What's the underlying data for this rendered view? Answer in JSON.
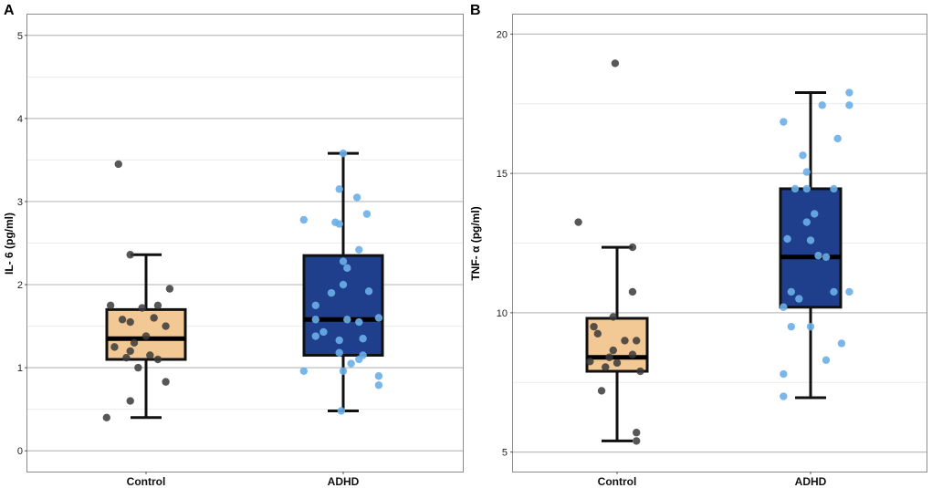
{
  "figure": {
    "panel_letters": [
      "A",
      "B"
    ]
  },
  "colors": {
    "control_box": "#F2C894",
    "adhd_box": "#1F3E8C",
    "control_points": "#3A3A3A",
    "adhd_points": "#6AAEE8",
    "grid_major": "#BDBDBD",
    "grid_minor": "#EBEBEB",
    "panel_border": "#8C8C8C"
  },
  "chart_data": [
    {
      "type": "box",
      "panel": "A",
      "title": "",
      "xlabel": "",
      "ylabel": "IL- 6 (pg/ml)",
      "categories": [
        "Control",
        "ADHD"
      ],
      "ylim": [
        -0.25,
        5.25
      ],
      "yticks": [
        0,
        1,
        2,
        3,
        4,
        5
      ],
      "boxes": [
        {
          "name": "Control",
          "whisker_low": 0.4,
          "q1": 1.1,
          "median": 1.35,
          "q3": 1.7,
          "whisker_high": 2.36
        },
        {
          "name": "ADHD",
          "whisker_low": 0.48,
          "q1": 1.15,
          "median": 1.58,
          "q3": 2.35,
          "whisker_high": 3.58
        }
      ],
      "points": [
        {
          "group": "Control",
          "values": [
            3.45,
            2.36,
            1.95,
            1.75,
            1.75,
            1.72,
            1.6,
            1.58,
            1.55,
            1.5,
            1.38,
            1.3,
            1.25,
            1.2,
            1.15,
            1.12,
            1.1,
            1.0,
            0.83,
            0.6,
            0.4
          ],
          "jitter": [
            -0.14,
            -0.08,
            0.12,
            -0.18,
            0.06,
            -0.02,
            0.04,
            -0.12,
            -0.08,
            0.1,
            0.0,
            -0.06,
            -0.16,
            -0.08,
            0.02,
            -0.1,
            0.06,
            -0.04,
            0.1,
            -0.08,
            -0.2
          ]
        },
        {
          "group": "ADHD",
          "values": [
            3.58,
            3.15,
            3.05,
            2.85,
            2.78,
            2.75,
            2.73,
            2.42,
            2.28,
            2.2,
            2.0,
            1.92,
            1.9,
            1.75,
            1.6,
            1.58,
            1.58,
            1.55,
            1.43,
            1.38,
            1.35,
            1.33,
            1.18,
            1.15,
            1.1,
            1.05,
            0.96,
            0.96,
            0.9,
            0.79,
            0.48
          ],
          "jitter": [
            0.0,
            -0.02,
            0.07,
            0.12,
            -0.2,
            -0.04,
            -0.02,
            0.08,
            0.0,
            0.02,
            0.0,
            0.13,
            -0.06,
            -0.14,
            0.18,
            -0.14,
            0.02,
            0.08,
            -0.1,
            -0.14,
            0.1,
            -0.02,
            -0.02,
            0.1,
            0.08,
            0.04,
            -0.2,
            0.0,
            0.18,
            0.18,
            -0.01
          ]
        }
      ]
    },
    {
      "type": "box",
      "panel": "B",
      "title": "",
      "xlabel": "",
      "ylabel": "TNF- α (pg/ml)",
      "categories": [
        "Control",
        "ADHD"
      ],
      "ylim": [
        4.3,
        20.7
      ],
      "yticks": [
        5,
        10,
        15,
        20
      ],
      "boxes": [
        {
          "name": "Control",
          "whisker_low": 5.4,
          "q1": 7.9,
          "median": 8.4,
          "q3": 9.8,
          "whisker_high": 12.35
        },
        {
          "name": "ADHD",
          "whisker_low": 6.95,
          "q1": 10.2,
          "median": 12.0,
          "q3": 14.45,
          "whisker_high": 17.9
        }
      ],
      "points": [
        {
          "group": "Control",
          "values": [
            18.95,
            13.25,
            12.35,
            10.75,
            9.85,
            9.5,
            9.25,
            9.0,
            9.0,
            8.65,
            8.5,
            8.4,
            8.25,
            8.2,
            8.05,
            7.9,
            7.2,
            5.7,
            5.4
          ],
          "jitter": [
            -0.01,
            -0.2,
            0.08,
            0.08,
            -0.02,
            -0.12,
            -0.1,
            0.04,
            0.1,
            -0.02,
            0.08,
            -0.04,
            -0.14,
            0.0,
            -0.06,
            0.12,
            -0.08,
            0.1,
            0.1
          ]
        },
        {
          "group": "ADHD",
          "values": [
            17.9,
            17.45,
            17.45,
            16.85,
            16.25,
            15.65,
            15.05,
            14.45,
            14.45,
            14.45,
            13.55,
            13.25,
            12.65,
            12.6,
            12.05,
            12.0,
            10.75,
            10.75,
            10.75,
            10.5,
            10.2,
            9.5,
            9.5,
            8.9,
            8.3,
            7.8,
            7.0
          ],
          "jitter": [
            0.2,
            0.06,
            0.2,
            -0.14,
            0.14,
            -0.04,
            -0.02,
            -0.02,
            -0.08,
            0.12,
            0.02,
            -0.02,
            -0.12,
            0.0,
            0.04,
            0.08,
            -0.1,
            0.12,
            0.2,
            -0.06,
            -0.14,
            -0.1,
            0.0,
            0.16,
            0.08,
            -0.14,
            -0.14
          ]
        }
      ]
    }
  ]
}
